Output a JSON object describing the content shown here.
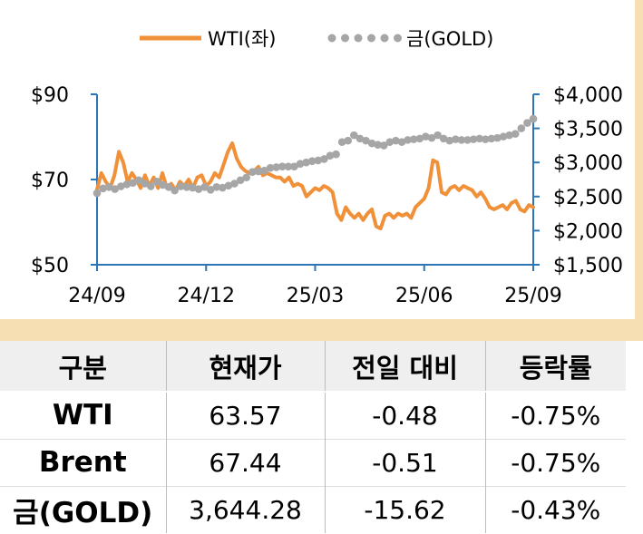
{
  "chart_data": {
    "type": "line",
    "x_ticks": [
      "24/09",
      "24/12",
      "25/03",
      "25/06",
      "25/09"
    ],
    "y_left": {
      "ticks": [
        "$90",
        "$70",
        "$50"
      ],
      "range": [
        50,
        90
      ]
    },
    "y_right": {
      "ticks": [
        "$4,000",
        "$3,500",
        "$3,000",
        "$2,500",
        "$2,000",
        "$1,500"
      ],
      "range": [
        1500,
        4000
      ]
    },
    "grid": false,
    "legend_position": "top-center",
    "series": [
      {
        "name": "WTI(좌)",
        "axis": "left",
        "style": "solid",
        "color": "#f0913a",
        "values": [
          67.7,
          71.5,
          69.5,
          68.0,
          71.0,
          76.5,
          74.0,
          69.5,
          71.5,
          70.0,
          68.0,
          71.0,
          68.5,
          70.5,
          68.0,
          71.5,
          68.0,
          69.0,
          67.5,
          69.5,
          68.5,
          70.0,
          68.0,
          70.5,
          71.0,
          68.5,
          69.5,
          71.5,
          70.5,
          73.5,
          76.5,
          78.5,
          75.0,
          73.0,
          72.0,
          71.5,
          72.0,
          73.0,
          71.0,
          71.5,
          71.0,
          70.5,
          70.5,
          69.5,
          70.5,
          68.5,
          69.0,
          68.5,
          66.0,
          67.0,
          68.0,
          67.5,
          68.5,
          68.0,
          67.0,
          62.0,
          60.5,
          63.5,
          62.0,
          61.0,
          62.0,
          60.5,
          62.0,
          63.0,
          59.0,
          58.5,
          61.5,
          62.0,
          61.0,
          62.0,
          61.5,
          62.0,
          61.0,
          63.5,
          64.5,
          65.5,
          68.0,
          74.5,
          74.0,
          67.0,
          66.5,
          68.0,
          68.5,
          67.5,
          68.5,
          68.0,
          67.5,
          66.0,
          67.0,
          65.5,
          63.5,
          63.0,
          63.5,
          64.0,
          63.0,
          64.5,
          65.0,
          63.0,
          62.5,
          64.0,
          63.5
        ]
      },
      {
        "name": "금(GOLD)",
        "axis": "right",
        "style": "dotted",
        "color": "#a6a6a6",
        "values": [
          2550,
          2620,
          2640,
          2610,
          2650,
          2680,
          2700,
          2740,
          2690,
          2650,
          2720,
          2670,
          2640,
          2590,
          2650,
          2640,
          2630,
          2610,
          2640,
          2600,
          2640,
          2630,
          2660,
          2690,
          2740,
          2780,
          2860,
          2870,
          2880,
          2920,
          2930,
          2940,
          2940,
          2940,
          2980,
          3000,
          3020,
          3030,
          3050,
          3100,
          3120,
          3300,
          3320,
          3400,
          3350,
          3320,
          3280,
          3260,
          3250,
          3300,
          3320,
          3300,
          3330,
          3340,
          3350,
          3380,
          3360,
          3400,
          3350,
          3320,
          3340,
          3330,
          3330,
          3340,
          3350,
          3340,
          3350,
          3360,
          3380,
          3400,
          3420,
          3500,
          3580,
          3640
        ]
      }
    ]
  },
  "table": {
    "headers": [
      "구분",
      "현재가",
      "전일 대비",
      "등락률"
    ],
    "rows": [
      [
        "WTI",
        "63.57",
        "-0.48",
        "-0.75%"
      ],
      [
        "Brent",
        "67.44",
        "-0.51",
        "-0.75%"
      ],
      [
        "금(GOLD)",
        "3,644.28",
        "-15.62",
        "-0.43%"
      ]
    ]
  }
}
